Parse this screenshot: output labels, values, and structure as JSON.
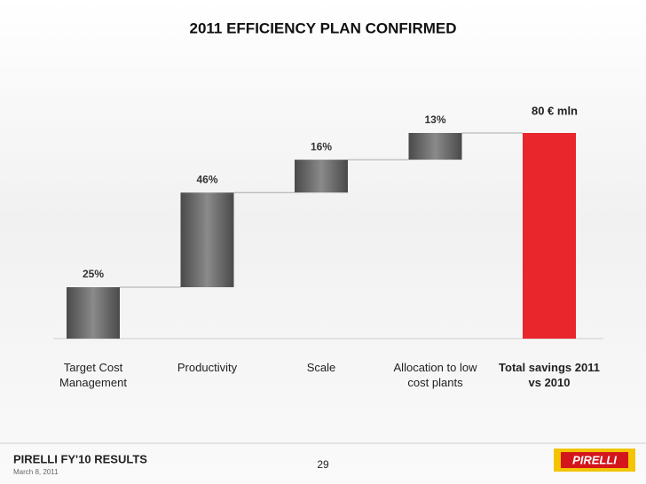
{
  "title": "2011 EFFICIENCY PLAN CONFIRMED",
  "chart_data": {
    "type": "waterfall",
    "categories": [
      "Target Cost Management",
      "Productivity",
      "Scale",
      "Allocation to low cost plants"
    ],
    "values": [
      25,
      46,
      16,
      13
    ],
    "value_labels": [
      "25%",
      "46%",
      "16%",
      "13%"
    ],
    "color": "#6a6a6a",
    "total": {
      "category": "Total savings 2011 vs 2010",
      "value": 80,
      "value_label": "80 € mln",
      "color": "#e8262b"
    }
  },
  "footer": {
    "title": "PIRELLI FY'10 RESULTS",
    "date": "March 8, 2011",
    "page": "29",
    "logo": "PIRELLI"
  }
}
